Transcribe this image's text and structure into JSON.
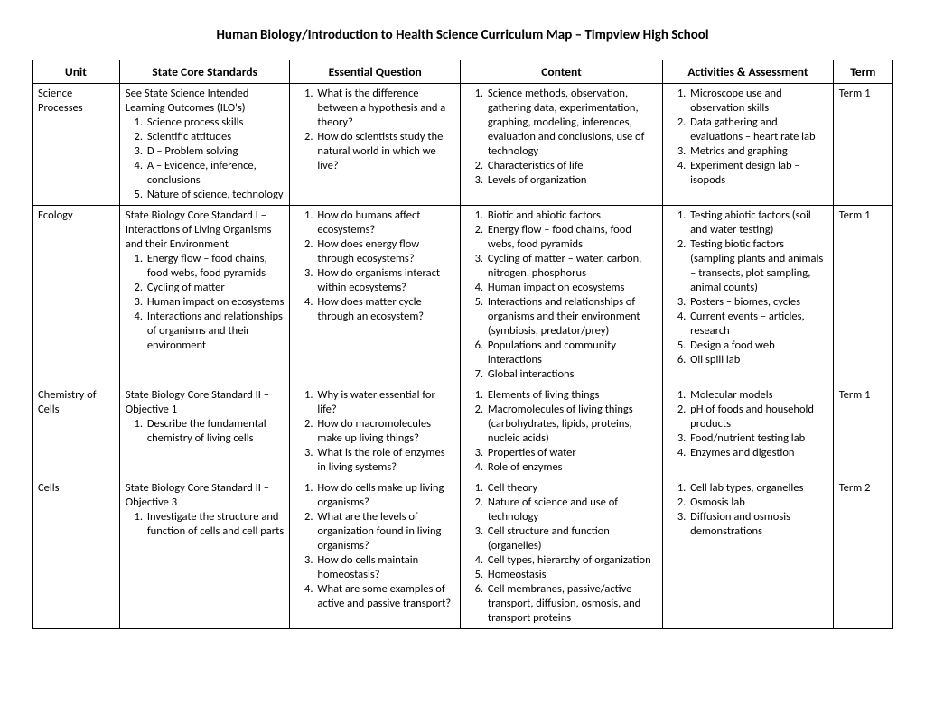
{
  "document_title": "Human Biology/Introduction to Health Science Curriculum Map – Timpview High School",
  "columns": [
    "Unit",
    "State Core Standards",
    "Essential Question",
    "Content",
    "Activities & Assessment",
    "Term"
  ],
  "rows": [
    {
      "unit": "Science Processes",
      "standards_intro": "See State Science Intended Learning Outcomes (ILO's)",
      "standards": [
        "Science process skills",
        "Scientific attitudes",
        "D – Problem solving",
        "A – Evidence, inference, conclusions",
        "Nature of science, technology"
      ],
      "questions": [
        "What is the difference between a hypothesis and a theory?",
        "How do scientists study the natural world in which we live?"
      ],
      "content": [
        "Science methods, observation, gathering data, experimentation, graphing, modeling, inferences, evaluation and conclusions, use of technology",
        "Characteristics of life",
        "Levels of organization"
      ],
      "activities": [
        "Microscope use and observation skills",
        "Data gathering and evaluations – heart rate lab",
        "Metrics and graphing",
        "Experiment design lab – isopods"
      ],
      "term": "Term 1"
    },
    {
      "unit": "Ecology",
      "standards_intro": "State Biology Core Standard I – Interactions of Living Organisms and their Environment",
      "standards": [
        "Energy flow – food chains, food webs, food pyramids",
        "Cycling of matter",
        "Human impact on ecosystems",
        "Interactions and relationships of organisms and their environment"
      ],
      "questions": [
        "How do humans affect ecosystems?",
        "How does energy flow through ecosystems?",
        "How do organisms interact within ecosystems?",
        "How does matter cycle through an ecosystem?"
      ],
      "content": [
        "Biotic and abiotic factors",
        "Energy flow – food chains, food webs, food pyramids",
        "Cycling of matter – water, carbon, nitrogen, phosphorus",
        "Human impact on ecosystems",
        "Interactions and relationships of organisms and their environment (symbiosis, predator/prey)",
        "Populations and community interactions",
        "Global interactions"
      ],
      "activities": [
        "Testing abiotic factors (soil and water testing)",
        "Testing biotic factors (sampling plants and animals – transects, plot sampling, animal counts)",
        "Posters – biomes, cycles",
        "Current events – articles, research",
        "Design a food web",
        "Oil spill lab"
      ],
      "term": "Term 1"
    },
    {
      "unit": "Chemistry of Cells",
      "standards_intro": "State Biology Core Standard II – Objective 1",
      "standards": [
        "Describe the fundamental chemistry of living cells"
      ],
      "questions": [
        "Why is water essential for life?",
        "How do macromolecules make up living things?",
        "What is the role of enzymes in living systems?"
      ],
      "content": [
        "Elements of living things",
        "Macromolecules of living things (carbohydrates, lipids, proteins, nucleic acids)",
        "Properties of water",
        "Role of enzymes"
      ],
      "activities": [
        "Molecular models",
        "pH of foods and household products",
        "Food/nutrient testing lab",
        "Enzymes and digestion"
      ],
      "term": "Term 1"
    },
    {
      "unit": "Cells",
      "standards_intro": "State Biology Core Standard II – Objective 3",
      "standards": [
        "Investigate the structure and function of cells and cell parts"
      ],
      "questions": [
        "How do cells make up living organisms?",
        "What are the levels of organization found in living organisms?",
        "How do cells maintain homeostasis?",
        "What are some examples of active and passive transport?"
      ],
      "content": [
        "Cell theory",
        "Nature of science and use of technology",
        "Cell structure and function (organelles)",
        "Cell types, hierarchy of organization",
        "Homeostasis",
        "Cell membranes, passive/active transport, diffusion, osmosis, and transport proteins"
      ],
      "activities": [
        "Cell lab  types, organelles",
        "Osmosis lab",
        "Diffusion and osmosis demonstrations"
      ],
      "term": "Term 2"
    }
  ]
}
